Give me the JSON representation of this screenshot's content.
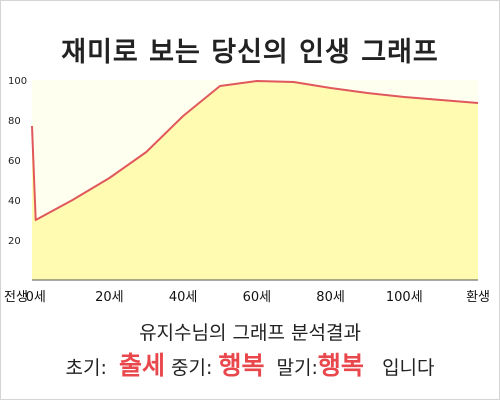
{
  "title": "재미로 보는 당신의 인생 그래프",
  "chart_data": {
    "type": "area",
    "title": "재미로 보는 당신의 인생 그래프",
    "xlabel": "",
    "ylabel": "",
    "ylim": [
      0,
      100
    ],
    "yticks": [
      20,
      40,
      60,
      80,
      100
    ],
    "xticks": [
      {
        "label": "전생",
        "x": -1
      },
      {
        "label": "0세",
        "x": 0
      },
      {
        "label": "20세",
        "x": 20
      },
      {
        "label": "40세",
        "x": 40
      },
      {
        "label": "60세",
        "x": 60
      },
      {
        "label": "80세",
        "x": 80
      },
      {
        "label": "100세",
        "x": 100
      },
      {
        "label": "환생",
        "x": 120
      }
    ],
    "x_range": [
      -1,
      120
    ],
    "series": [
      {
        "x": [
          -1,
          0,
          10,
          20,
          30,
          40,
          50,
          60,
          70,
          80,
          90,
          100,
          110,
          120
        ],
        "values": [
          77,
          30,
          40,
          51,
          64,
          82,
          97,
          99.5,
          99,
          96,
          93.5,
          91.5,
          90,
          88.5
        ]
      }
    ],
    "grid": false,
    "colors": {
      "fill": "#fffbb0",
      "line": "#e0585c",
      "background": "#fffff0"
    }
  },
  "summary": "유지수님의 그래프 분석결과",
  "verdict": {
    "early_label": "초기:",
    "early_value": "출세",
    "mid_label": "중기:",
    "mid_value": "행복",
    "late_label": "말기:",
    "late_value": "행복",
    "ending": "입니다"
  }
}
